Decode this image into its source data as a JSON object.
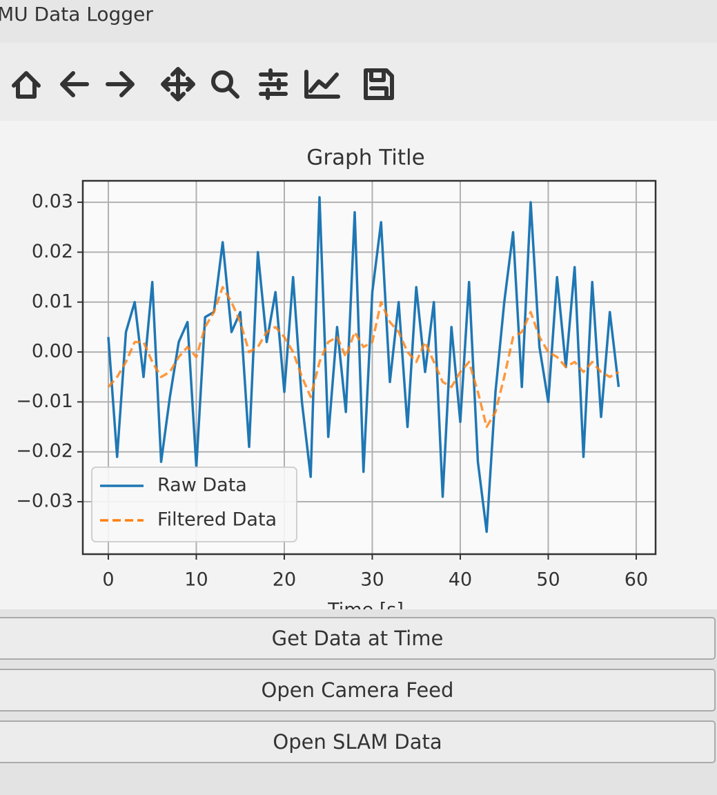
{
  "window": {
    "title": "MU Data Logger"
  },
  "chart_data": {
    "type": "line",
    "title": "Graph Title",
    "x_label": "Time [s]",
    "x": [
      0,
      1,
      2,
      3,
      4,
      5,
      6,
      7,
      8,
      9,
      10,
      11,
      12,
      13,
      14,
      15,
      16,
      17,
      18,
      19,
      20,
      21,
      22,
      23,
      24,
      25,
      26,
      27,
      28,
      29,
      30,
      31,
      32,
      33,
      34,
      35,
      36,
      37,
      38,
      39,
      40,
      41,
      42,
      43,
      44,
      45,
      46,
      47,
      48,
      49,
      50,
      51,
      52,
      53,
      54,
      55,
      56,
      57,
      58
    ],
    "series": [
      {
        "name": "Raw Data",
        "color": "#1f77b4",
        "dash": "solid",
        "values": [
          0.003,
          -0.021,
          0.004,
          0.01,
          -0.005,
          0.014,
          -0.022,
          -0.009,
          0.002,
          0.006,
          -0.023,
          0.007,
          0.008,
          0.022,
          0.004,
          0.008,
          -0.019,
          0.02,
          0.002,
          0.012,
          -0.008,
          0.015,
          -0.01,
          -0.025,
          0.031,
          -0.017,
          0.005,
          -0.012,
          0.028,
          -0.024,
          0.012,
          0.026,
          -0.006,
          0.01,
          -0.015,
          0.013,
          -0.004,
          0.01,
          -0.029,
          0.005,
          -0.014,
          0.014,
          -0.022,
          -0.036,
          -0.008,
          0.01,
          0.024,
          -0.007,
          0.03,
          0.001,
          -0.01,
          0.015,
          -0.003,
          0.017,
          -0.021,
          0.014,
          -0.013,
          0.008,
          -0.007
        ]
      },
      {
        "name": "Filtered Data",
        "color": "#ff7f0e",
        "dash": "dashed",
        "values": [
          -0.007,
          -0.005,
          -0.002,
          0.002,
          0.002,
          -0.002,
          -0.005,
          -0.004,
          -0.001,
          0.001,
          -0.001,
          0.005,
          0.008,
          0.013,
          0.01,
          0.006,
          0.0,
          0.001,
          0.004,
          0.005,
          0.003,
          0.0,
          -0.005,
          -0.009,
          -0.002,
          0.002,
          0.003,
          -0.001,
          0.004,
          0.001,
          0.002,
          0.01,
          0.006,
          0.004,
          0.0,
          -0.002,
          0.002,
          -0.002,
          -0.006,
          -0.007,
          -0.004,
          -0.002,
          -0.008,
          -0.015,
          -0.012,
          -0.005,
          0.003,
          0.004,
          0.008,
          0.003,
          0.0,
          -0.001,
          -0.003,
          -0.002,
          -0.004,
          -0.002,
          -0.004,
          -0.005,
          -0.004
        ]
      }
    ],
    "xlim": [
      -2.9,
      62.2
    ],
    "ylim": [
      -0.0405,
      0.0343
    ],
    "xticks": [
      0,
      10,
      20,
      30,
      40,
      50,
      60
    ],
    "yticks": [
      {
        "value": -0.03,
        "label": "−0.03"
      },
      {
        "value": -0.02,
        "label": "−0.02"
      },
      {
        "value": -0.01,
        "label": "−0.01"
      },
      {
        "value": 0,
        "label": "0.00"
      },
      0.01,
      0.02,
      0.03
    ],
    "grid": true,
    "legend": "lower left"
  },
  "buttons": [
    "Get Data at Time",
    "Open Camera Feed",
    "Open SLAM Data"
  ]
}
